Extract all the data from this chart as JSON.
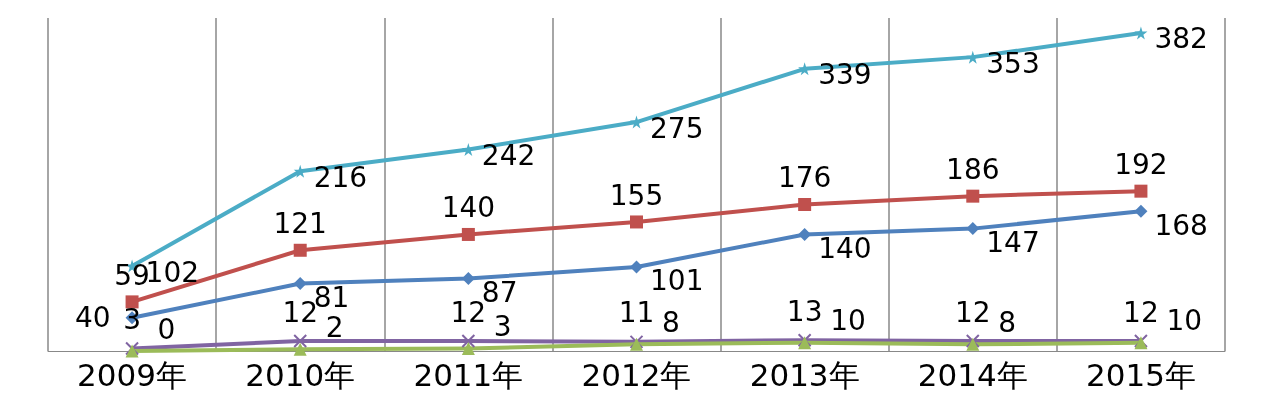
{
  "chart_data": {
    "type": "line",
    "categories": [
      "2009年",
      "2010年",
      "2011年",
      "2012年",
      "2013年",
      "2014年",
      "2015年"
    ],
    "series": [
      {
        "color": "#4bacc6",
        "marker": "star",
        "values": [
          102,
          216,
          242,
          275,
          339,
          353,
          382
        ]
      },
      {
        "color": "#c0504d",
        "marker": "square",
        "values": [
          59,
          121,
          140,
          155,
          176,
          186,
          192
        ]
      },
      {
        "color": "#4f81bd",
        "marker": "diamond",
        "values": [
          40,
          81,
          87,
          101,
          140,
          147,
          168
        ]
      },
      {
        "color": "#8064a2",
        "marker": "cross",
        "values": [
          3,
          12,
          12,
          11,
          13,
          12,
          12
        ]
      },
      {
        "color": "#9bbb59",
        "marker": "triangle",
        "values": [
          0,
          2,
          3,
          8,
          10,
          8,
          10
        ]
      }
    ],
    "data_labels": true,
    "grid": "x",
    "tick_labels": "x"
  }
}
